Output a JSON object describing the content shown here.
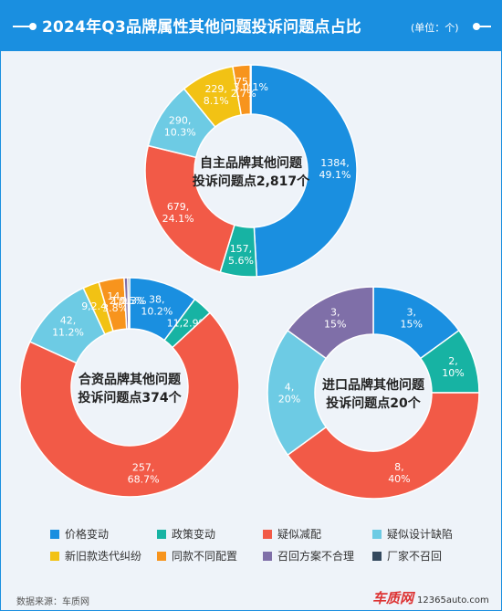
{
  "header": {
    "title": "2024年Q3品牌属性其他问题投诉问题点占比",
    "unit": "(单位：个)"
  },
  "colors": {
    "价格变动": "#1a8fe0",
    "政策变动": "#17b3a3",
    "疑似减配": "#f25a47",
    "疑似设计缺陷": "#6dcbe4",
    "新旧款迭代纠纷": "#f2c214",
    "同款不同配置": "#f7941d",
    "召回方案不合理": "#7f6fa8",
    "厂家不召回": "#34495e"
  },
  "chart_data": [
    {
      "type": "pie",
      "center_label": [
        "自主品牌其他问题",
        "投诉问题点2,817个"
      ],
      "slices": [
        {
          "category": "价格变动",
          "value": 1384,
          "percent": "49.1%",
          "label": "1384,\n49.1%"
        },
        {
          "category": "政策变动",
          "value": 157,
          "percent": "5.6%",
          "label": "157,\n5.6%"
        },
        {
          "category": "疑似减配",
          "value": 679,
          "percent": "24.1%",
          "label": "679,\n24.1%"
        },
        {
          "category": "疑似设计缺陷",
          "value": 290,
          "percent": "10.3%",
          "label": "290,\n10.3%"
        },
        {
          "category": "新旧款迭代纠纷",
          "value": 229,
          "percent": "8.1%",
          "label": "229,\n8.1%"
        },
        {
          "category": "同款不同配置",
          "value": 75,
          "percent": "2.7%",
          "label": "75,\n2.7%"
        },
        {
          "category": "召回方案不合理",
          "value": 3,
          "percent": "0.1%",
          "label": "3,0.1%"
        },
        {
          "category": "厂家不召回",
          "value": 0,
          "percent": "0%",
          "label": ""
        }
      ]
    },
    {
      "type": "pie",
      "center_label": [
        "合资品牌其他问题",
        "投诉问题点374个"
      ],
      "slices": [
        {
          "category": "价格变动",
          "value": 38,
          "percent": "10.2%",
          "label": "38,\n10.2%"
        },
        {
          "category": "政策变动",
          "value": 11,
          "percent": "2.9%",
          "label": "11,2.9%"
        },
        {
          "category": "疑似减配",
          "value": 257,
          "percent": "68.7%",
          "label": "257,\n68.7%"
        },
        {
          "category": "疑似设计缺陷",
          "value": 42,
          "percent": "11.2%",
          "label": "42,\n11.2%"
        },
        {
          "category": "新旧款迭代纠纷",
          "value": 9,
          "percent": "2.4%",
          "label": "9,2.4%"
        },
        {
          "category": "同款不同配置",
          "value": 14,
          "percent": "3.8%",
          "label": "14,\n3.8%"
        },
        {
          "category": "召回方案不合理",
          "value": 2,
          "percent": "0.5%",
          "label": "2,0.5%"
        },
        {
          "category": "厂家不召回",
          "value": 1,
          "percent": "0.3%",
          "label": "1,0.3%"
        }
      ]
    },
    {
      "type": "pie",
      "center_label": [
        "进口品牌其他问题",
        "投诉问题点20个"
      ],
      "slices": [
        {
          "category": "价格变动",
          "value": 3,
          "percent": "15%",
          "label": "3,\n15%"
        },
        {
          "category": "政策变动",
          "value": 2,
          "percent": "10%",
          "label": "2,\n10%"
        },
        {
          "category": "疑似减配",
          "value": 8,
          "percent": "40%",
          "label": "8,\n40%"
        },
        {
          "category": "疑似设计缺陷",
          "value": 4,
          "percent": "20%",
          "label": "4,\n20%"
        },
        {
          "category": "新旧款迭代纠纷",
          "value": 0,
          "percent": "0%",
          "label": ""
        },
        {
          "category": "同款不同配置",
          "value": 0,
          "percent": "0%",
          "label": ""
        },
        {
          "category": "召回方案不合理",
          "value": 3,
          "percent": "15%",
          "label": "3,\n15%"
        },
        {
          "category": "厂家不召回",
          "value": 0,
          "percent": "0%",
          "label": ""
        }
      ]
    }
  ],
  "legend": [
    "价格变动",
    "政策变动",
    "疑似减配",
    "疑似设计缺陷",
    "新旧款迭代纠纷",
    "同款不同配置",
    "召回方案不合理",
    "厂家不召回"
  ],
  "footer": {
    "source": "数据来源：车质网",
    "logo_main": "车质网",
    "logo_site": "12365auto.com"
  }
}
